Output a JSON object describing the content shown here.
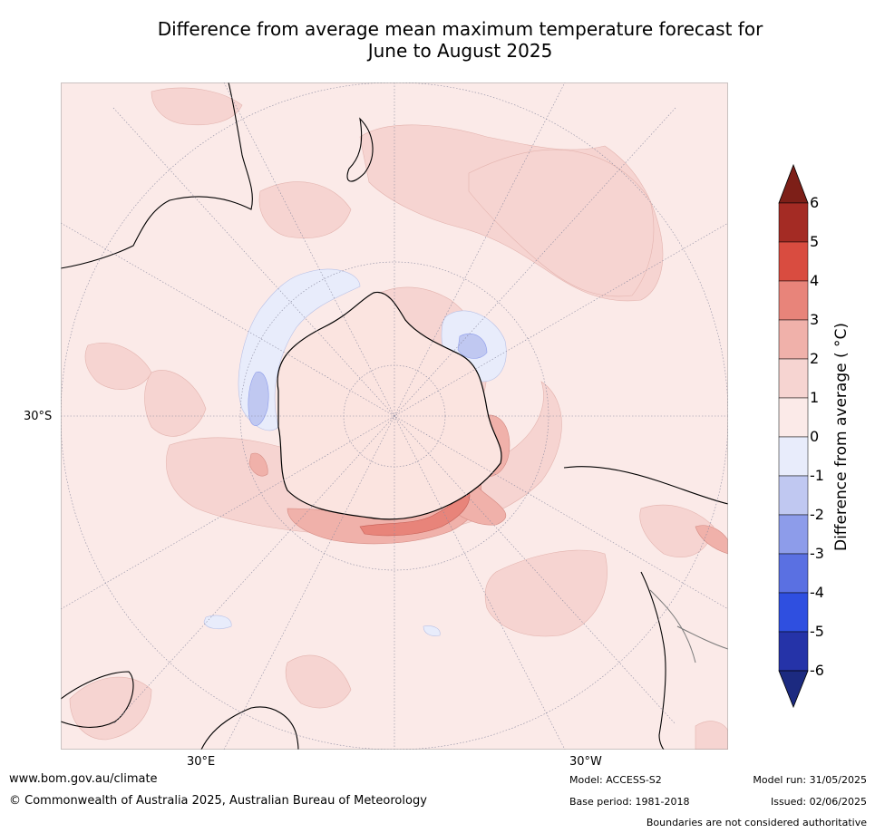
{
  "title_line1": "Difference from average mean maximum temperature forecast for",
  "title_line2": "June to August 2025",
  "lat_label": "30°S",
  "lon_label_east": "30°E",
  "lon_label_west": "30°W",
  "colorbar": {
    "title": "Difference from average ( °C)",
    "ticks": [
      "6",
      "5",
      "4",
      "3",
      "2",
      "1",
      "0",
      "-1",
      "-2",
      "-3",
      "-4",
      "-5",
      "-6"
    ],
    "colors": [
      "#a42b24",
      "#d94c40",
      "#e8847a",
      "#f0b1aa",
      "#f6d4d1",
      "#fbeae8",
      "#e8ecfb",
      "#c0c8f1",
      "#8d9cea",
      "#5a70e2",
      "#2f4fe0",
      "#2533a8"
    ],
    "extend_high": "#7d1f18",
    "extend_low": "#1c2a80"
  },
  "footer": {
    "url": "www.bom.gov.au/climate",
    "copyright": "© Commonwealth of Australia 2025, Australian Bureau of Meteorology",
    "model": "Model: ACCESS-S2",
    "base_period": "Base period: 1981-2018",
    "model_run": "Model run: 31/05/2025",
    "issued": "Issued: 02/06/2025",
    "disclaimer": "Boundaries are not considered authoritative"
  }
}
